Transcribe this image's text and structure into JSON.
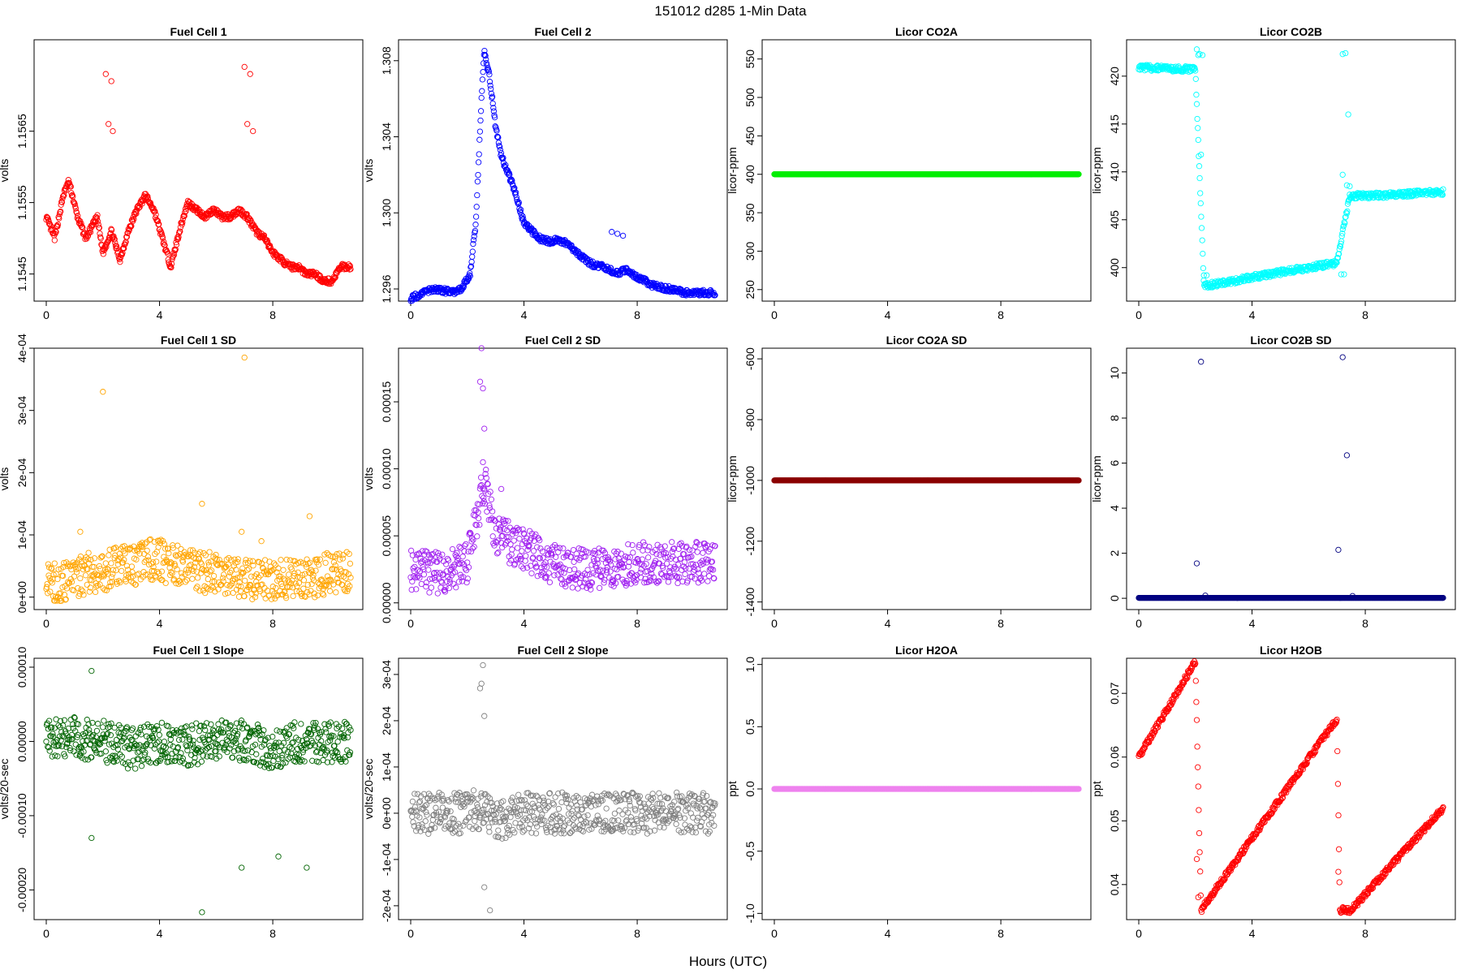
{
  "figure": {
    "title": "151012   d285   1-Min Data",
    "xlabel": "Hours (UTC)"
  },
  "chart_data": [
    {
      "type": "scatter",
      "title": "Fuel Cell 1",
      "ylabel": "volts",
      "color": "#ff0000",
      "xlim": [
        0,
        10.75
      ],
      "ylim": [
        1.15412,
        1.15778
      ],
      "xticks": [
        0,
        4,
        8
      ],
      "yticks": [
        1.1545,
        1.1555,
        1.1565
      ],
      "ytick_labels": [
        "1.1545",
        "1.1555",
        "1.1565"
      ],
      "points": [
        [
          0.0,
          1.1553
        ],
        [
          0.3,
          1.155
        ],
        [
          0.6,
          1.1556
        ],
        [
          0.8,
          1.1558
        ],
        [
          1.1,
          1.1553
        ],
        [
          1.4,
          1.155
        ],
        [
          1.8,
          1.1553
        ],
        [
          2.0,
          1.1548
        ],
        [
          2.3,
          1.1551
        ],
        [
          2.6,
          1.1547
        ],
        [
          2.9,
          1.1551
        ],
        [
          3.2,
          1.1554
        ],
        [
          3.5,
          1.1556
        ],
        [
          3.8,
          1.1554
        ],
        [
          4.1,
          1.155
        ],
        [
          4.4,
          1.1546
        ],
        [
          4.7,
          1.1551
        ],
        [
          5.0,
          1.1555
        ],
        [
          5.3,
          1.1554
        ],
        [
          5.6,
          1.1553
        ],
        [
          5.9,
          1.1554
        ],
        [
          6.2,
          1.1553
        ],
        [
          6.5,
          1.1553
        ],
        [
          6.8,
          1.1554
        ],
        [
          7.1,
          1.1553
        ],
        [
          7.4,
          1.1551
        ],
        [
          7.7,
          1.155
        ],
        [
          8.0,
          1.1548
        ],
        [
          8.3,
          1.1547
        ],
        [
          8.6,
          1.1546
        ],
        [
          8.9,
          1.1546
        ],
        [
          9.2,
          1.1545
        ],
        [
          9.5,
          1.1545
        ],
        [
          9.8,
          1.1544
        ],
        [
          10.1,
          1.1544
        ],
        [
          10.4,
          1.1546
        ],
        [
          10.6,
          1.1546
        ]
      ],
      "outliers": [
        [
          2.1,
          1.1573
        ],
        [
          2.3,
          1.1572
        ],
        [
          2.2,
          1.1566
        ],
        [
          2.35,
          1.1565
        ],
        [
          7.0,
          1.1574
        ],
        [
          7.2,
          1.1573
        ],
        [
          7.1,
          1.1566
        ],
        [
          7.3,
          1.1565
        ]
      ]
    },
    {
      "type": "scatter",
      "title": "Fuel Cell 2",
      "ylabel": "volts",
      "color": "#0000ff",
      "xlim": [
        0,
        10.75
      ],
      "ylim": [
        1.29536,
        1.3091
      ],
      "xticks": [
        0,
        4,
        8
      ],
      "yticks": [
        1.296,
        1.3,
        1.304,
        1.308
      ],
      "ytick_labels": [
        "1.296",
        "1.300",
        "1.304",
        "1.308"
      ],
      "points": [
        [
          0.0,
          1.2955
        ],
        [
          0.3,
          1.2957
        ],
        [
          0.6,
          1.2959
        ],
        [
          0.9,
          1.296
        ],
        [
          1.2,
          1.2959
        ],
        [
          1.5,
          1.2958
        ],
        [
          1.8,
          1.296
        ],
        [
          2.1,
          1.2968
        ],
        [
          2.3,
          1.2995
        ],
        [
          2.5,
          1.306
        ],
        [
          2.6,
          1.3085
        ],
        [
          2.8,
          1.307
        ],
        [
          3.0,
          1.3045
        ],
        [
          3.2,
          1.303
        ],
        [
          3.4,
          1.3022
        ],
        [
          3.6,
          1.3015
        ],
        [
          3.8,
          1.3005
        ],
        [
          4.0,
          1.2995
        ],
        [
          4.3,
          1.299
        ],
        [
          4.6,
          1.2986
        ],
        [
          4.9,
          1.2985
        ],
        [
          5.2,
          1.2986
        ],
        [
          5.5,
          1.2984
        ],
        [
          5.8,
          1.298
        ],
        [
          6.1,
          1.2976
        ],
        [
          6.4,
          1.2973
        ],
        [
          6.7,
          1.2972
        ],
        [
          7.0,
          1.297
        ],
        [
          7.3,
          1.2968
        ],
        [
          7.6,
          1.297
        ],
        [
          7.9,
          1.2967
        ],
        [
          8.2,
          1.2965
        ],
        [
          8.5,
          1.2962
        ],
        [
          8.8,
          1.2961
        ],
        [
          9.1,
          1.296
        ],
        [
          9.4,
          1.2959
        ],
        [
          9.7,
          1.2958
        ],
        [
          10.0,
          1.2958
        ],
        [
          10.3,
          1.2958
        ],
        [
          10.6,
          1.2958
        ]
      ],
      "outliers": [
        [
          7.1,
          1.299
        ],
        [
          7.3,
          1.2989
        ],
        [
          7.5,
          1.2988
        ]
      ]
    },
    {
      "type": "scatter",
      "title": "Licor CO2A",
      "ylabel": "licor-ppm",
      "color": "#00ee00",
      "xlim": [
        0,
        10.75
      ],
      "ylim": [
        235,
        575
      ],
      "xticks": [
        0,
        4,
        8
      ],
      "yticks": [
        250,
        300,
        350,
        400,
        450,
        500,
        550
      ],
      "ytick_labels": [
        "250",
        "300",
        "350",
        "400",
        "450",
        "500",
        "550"
      ],
      "points": [
        [
          0.0,
          400
        ],
        [
          10.75,
          400
        ]
      ]
    },
    {
      "type": "scatter",
      "title": "Licor CO2B",
      "ylabel": "licor-ppm",
      "color": "#00ffff",
      "xlim": [
        0,
        10.75
      ],
      "ylim": [
        396.5,
        423.8
      ],
      "xticks": [
        0,
        4,
        8
      ],
      "yticks": [
        400,
        405,
        410,
        415,
        420
      ],
      "ytick_labels": [
        "400",
        "405",
        "410",
        "415",
        "420"
      ],
      "points": [
        [
          0.0,
          420.9
        ],
        [
          0.5,
          420.85
        ],
        [
          1.0,
          420.8
        ],
        [
          1.5,
          420.75
        ],
        [
          2.0,
          420.7
        ],
        [
          2.3,
          398.1
        ],
        [
          3.0,
          398.4
        ],
        [
          4.0,
          399.0
        ],
        [
          5.0,
          399.5
        ],
        [
          6.0,
          400.0
        ],
        [
          7.0,
          400.5
        ],
        [
          7.45,
          407.5
        ],
        [
          8.0,
          407.5
        ],
        [
          9.0,
          407.6
        ],
        [
          10.0,
          407.8
        ],
        [
          10.75,
          407.9
        ]
      ],
      "outliers": [
        [
          2.1,
          422.2
        ],
        [
          2.15,
          422.3
        ],
        [
          2.25,
          422.2
        ],
        [
          2.3,
          399.2
        ],
        [
          2.4,
          399.2
        ],
        [
          2.05,
          422.8
        ],
        [
          2.2,
          411.8
        ],
        [
          7.2,
          422.3
        ],
        [
          7.3,
          422.4
        ],
        [
          7.4,
          416.0
        ],
        [
          7.2,
          409.7
        ],
        [
          7.35,
          408.6
        ],
        [
          7.45,
          408.5
        ],
        [
          7.15,
          399.3
        ],
        [
          7.25,
          399.3
        ]
      ]
    },
    {
      "type": "scatter",
      "title": "Fuel Cell 1 SD",
      "ylabel": "volts",
      "color": "#ffa500",
      "xlim": [
        0,
        10.75
      ],
      "ylim": [
        -2e-05,
        0.0004
      ],
      "xticks": [
        0,
        4,
        8
      ],
      "yticks": [
        0,
        0.0001,
        0.0002,
        0.0003,
        0.0004
      ],
      "ytick_labels": [
        "0e+00",
        "1e-04",
        "2e-04",
        "3e-04",
        "4e-04"
      ],
      "points": [
        [
          0.0,
          3e-05
        ],
        [
          0.5,
          2e-05
        ],
        [
          1.0,
          3e-05
        ],
        [
          1.5,
          4e-05
        ],
        [
          2.0,
          4e-05
        ],
        [
          2.5,
          5e-05
        ],
        [
          3.0,
          5e-05
        ],
        [
          3.5,
          6e-05
        ],
        [
          4.0,
          6e-05
        ],
        [
          4.5,
          5e-05
        ],
        [
          5.0,
          5e-05
        ],
        [
          5.5,
          4e-05
        ],
        [
          6.0,
          4e-05
        ],
        [
          6.5,
          3e-05
        ],
        [
          7.0,
          3e-05
        ],
        [
          7.5,
          3e-05
        ],
        [
          8.0,
          3e-05
        ],
        [
          8.5,
          3e-05
        ],
        [
          9.0,
          3e-05
        ],
        [
          9.5,
          3e-05
        ],
        [
          10.0,
          4e-05
        ],
        [
          10.5,
          4e-05
        ]
      ],
      "outliers": [
        [
          2.0,
          0.00033
        ],
        [
          7.0,
          0.000385
        ],
        [
          5.5,
          0.00015
        ],
        [
          9.3,
          0.00013
        ],
        [
          6.9,
          0.000105
        ],
        [
          1.2,
          0.000105
        ],
        [
          7.6,
          9e-05
        ]
      ]
    },
    {
      "type": "scatter",
      "title": "Fuel Cell 2 SD",
      "ylabel": "volts",
      "color": "#a020f0",
      "xlim": [
        0,
        10.75
      ],
      "ylim": [
        -5e-06,
        0.00019
      ],
      "xticks": [
        0,
        4,
        8
      ],
      "yticks": [
        0,
        5e-05,
        0.0001,
        0.00015
      ],
      "ytick_labels": [
        "0.00000",
        "0.00005",
        "0.00010",
        "0.00015"
      ],
      "points": [
        [
          0.0,
          2.5e-05
        ],
        [
          1.0,
          2.2e-05
        ],
        [
          2.0,
          3e-05
        ],
        [
          2.4,
          7e-05
        ],
        [
          2.6,
          9e-05
        ],
        [
          3.0,
          5e-05
        ],
        [
          4.0,
          4e-05
        ],
        [
          5.0,
          3e-05
        ],
        [
          6.0,
          2.5e-05
        ],
        [
          7.0,
          2.5e-05
        ],
        [
          8.0,
          3e-05
        ],
        [
          9.0,
          3e-05
        ],
        [
          10.0,
          3e-05
        ],
        [
          10.7,
          3e-05
        ]
      ],
      "outliers": [
        [
          2.5,
          0.00019
        ],
        [
          2.45,
          0.000165
        ],
        [
          2.55,
          0.00016
        ],
        [
          2.6,
          0.00013
        ],
        [
          2.55,
          0.000105
        ],
        [
          3.2,
          8.5e-05
        ],
        [
          2.6,
          8.5e-05
        ]
      ]
    },
    {
      "type": "scatter",
      "title": "Licor CO2A SD",
      "ylabel": "licor-ppm",
      "color": "#8b0000",
      "xlim": [
        0,
        10.75
      ],
      "ylim": [
        -1425,
        -565
      ],
      "xticks": [
        0,
        4,
        8
      ],
      "yticks": [
        -1400,
        -1200,
        -1000,
        -800,
        -600
      ],
      "ytick_labels": [
        "-1400",
        "-1200",
        "-1000",
        "-800",
        "-600"
      ],
      "points": [
        [
          0.0,
          -1000
        ],
        [
          10.75,
          -1000
        ]
      ]
    },
    {
      "type": "scatter",
      "title": "Licor CO2B SD",
      "ylabel": "licor-ppm",
      "color": "#000080",
      "xlim": [
        0,
        10.75
      ],
      "ylim": [
        -0.5,
        11.1
      ],
      "xticks": [
        0,
        4,
        8
      ],
      "yticks": [
        0,
        2,
        4,
        6,
        8,
        10
      ],
      "ytick_labels": [
        "0",
        "2",
        "4",
        "6",
        "8",
        "10"
      ],
      "points": [
        [
          0.0,
          0.02
        ],
        [
          10.75,
          0.02
        ]
      ],
      "outliers": [
        [
          2.2,
          10.5
        ],
        [
          2.05,
          1.55
        ],
        [
          2.35,
          0.12
        ],
        [
          7.2,
          10.7
        ],
        [
          7.35,
          6.35
        ],
        [
          7.05,
          2.15
        ],
        [
          7.55,
          0.1
        ]
      ]
    },
    {
      "type": "scatter",
      "title": "Fuel Cell 1 Slope",
      "ylabel": "volts/20-sec",
      "color": "#006400",
      "xlim": [
        0,
        10.75
      ],
      "ylim": [
        -0.00024,
        0.000112
      ],
      "xticks": [
        0,
        4,
        8
      ],
      "yticks": [
        -0.0002,
        -0.0001,
        0,
        0.0001
      ],
      "ytick_labels": [
        "-0.00020",
        "-0.00010",
        "0.00000",
        "0.00010"
      ],
      "points": [
        [
          0.0,
          0.0
        ],
        [
          1.0,
          5e-06
        ],
        [
          2.0,
          0.0
        ],
        [
          3.0,
          -1e-05
        ],
        [
          4.0,
          0.0
        ],
        [
          5.0,
          -5e-06
        ],
        [
          6.0,
          0.0
        ],
        [
          7.0,
          0.0
        ],
        [
          8.0,
          -1e-05
        ],
        [
          9.0,
          0.0
        ],
        [
          10.0,
          0.0
        ],
        [
          10.7,
          0.0
        ]
      ],
      "outliers": [
        [
          1.6,
          9.5e-05
        ],
        [
          5.5,
          -0.00023
        ],
        [
          9.2,
          -0.00017
        ],
        [
          6.9,
          -0.00017
        ],
        [
          1.6,
          -0.00013
        ],
        [
          8.2,
          -0.000155
        ]
      ]
    },
    {
      "type": "scatter",
      "title": "Fuel Cell 2 Slope",
      "ylabel": "volts/20-sec",
      "color": "#808080",
      "xlim": [
        0,
        10.75
      ],
      "ylim": [
        -0.00023,
        0.000335
      ],
      "xticks": [
        0,
        4,
        8
      ],
      "yticks": [
        -0.0002,
        -0.0001,
        0,
        0.0001,
        0.0002,
        0.0003
      ],
      "ytick_labels": [
        "-2e-04",
        "-1e-04",
        "0e+00",
        "1e-04",
        "2e-04",
        "3e-04"
      ],
      "points": [
        [
          0.0,
          0.0
        ],
        [
          1.0,
          0.0
        ],
        [
          2.0,
          0.0
        ],
        [
          2.4,
          1e-05
        ],
        [
          3.0,
          -2e-05
        ],
        [
          4.0,
          0.0
        ],
        [
          5.0,
          0.0
        ],
        [
          6.0,
          0.0
        ],
        [
          7.0,
          0.0
        ],
        [
          8.0,
          0.0
        ],
        [
          9.0,
          0.0
        ],
        [
          10.0,
          0.0
        ],
        [
          10.7,
          0.0
        ]
      ],
      "outliers": [
        [
          2.55,
          0.00032
        ],
        [
          2.5,
          0.00028
        ],
        [
          2.45,
          0.00027
        ],
        [
          2.6,
          0.00021
        ],
        [
          2.8,
          -0.00021
        ],
        [
          2.6,
          -0.00016
        ]
      ]
    },
    {
      "type": "scatter",
      "title": "Licor H2OA",
      "ylabel": "ppt",
      "color": "#ee82ee",
      "xlim": [
        0,
        10.75
      ],
      "ylim": [
        -1.05,
        1.05
      ],
      "xticks": [
        0,
        4,
        8
      ],
      "yticks": [
        -1.0,
        -0.5,
        0.0,
        0.5,
        1.0
      ],
      "ytick_labels": [
        "-1.0",
        "-0.5",
        "0.0",
        "0.5",
        "1.0"
      ],
      "points": [
        [
          0.0,
          0.0
        ],
        [
          10.75,
          0.0
        ]
      ]
    },
    {
      "type": "scatter",
      "title": "Licor H2OB",
      "ylabel": "ppt",
      "color": "#ff0000",
      "xlim": [
        0,
        10.75
      ],
      "ylim": [
        0.0345,
        0.0755
      ],
      "xticks": [
        0,
        4,
        8
      ],
      "yticks": [
        0.04,
        0.05,
        0.06,
        0.07
      ],
      "ytick_labels": [
        "0.04",
        "0.05",
        "0.06",
        "0.07"
      ],
      "points": [
        [
          0.0,
          0.06
        ],
        [
          2.0,
          0.075
        ],
        [
          2.2,
          0.036
        ],
        [
          7.0,
          0.066
        ],
        [
          7.1,
          0.036
        ],
        [
          7.5,
          0.036
        ],
        [
          10.75,
          0.052
        ]
      ],
      "outliers": [
        [
          2.05,
          0.044
        ],
        [
          2.1,
          0.038
        ],
        [
          7.05,
          0.042
        ]
      ]
    }
  ]
}
